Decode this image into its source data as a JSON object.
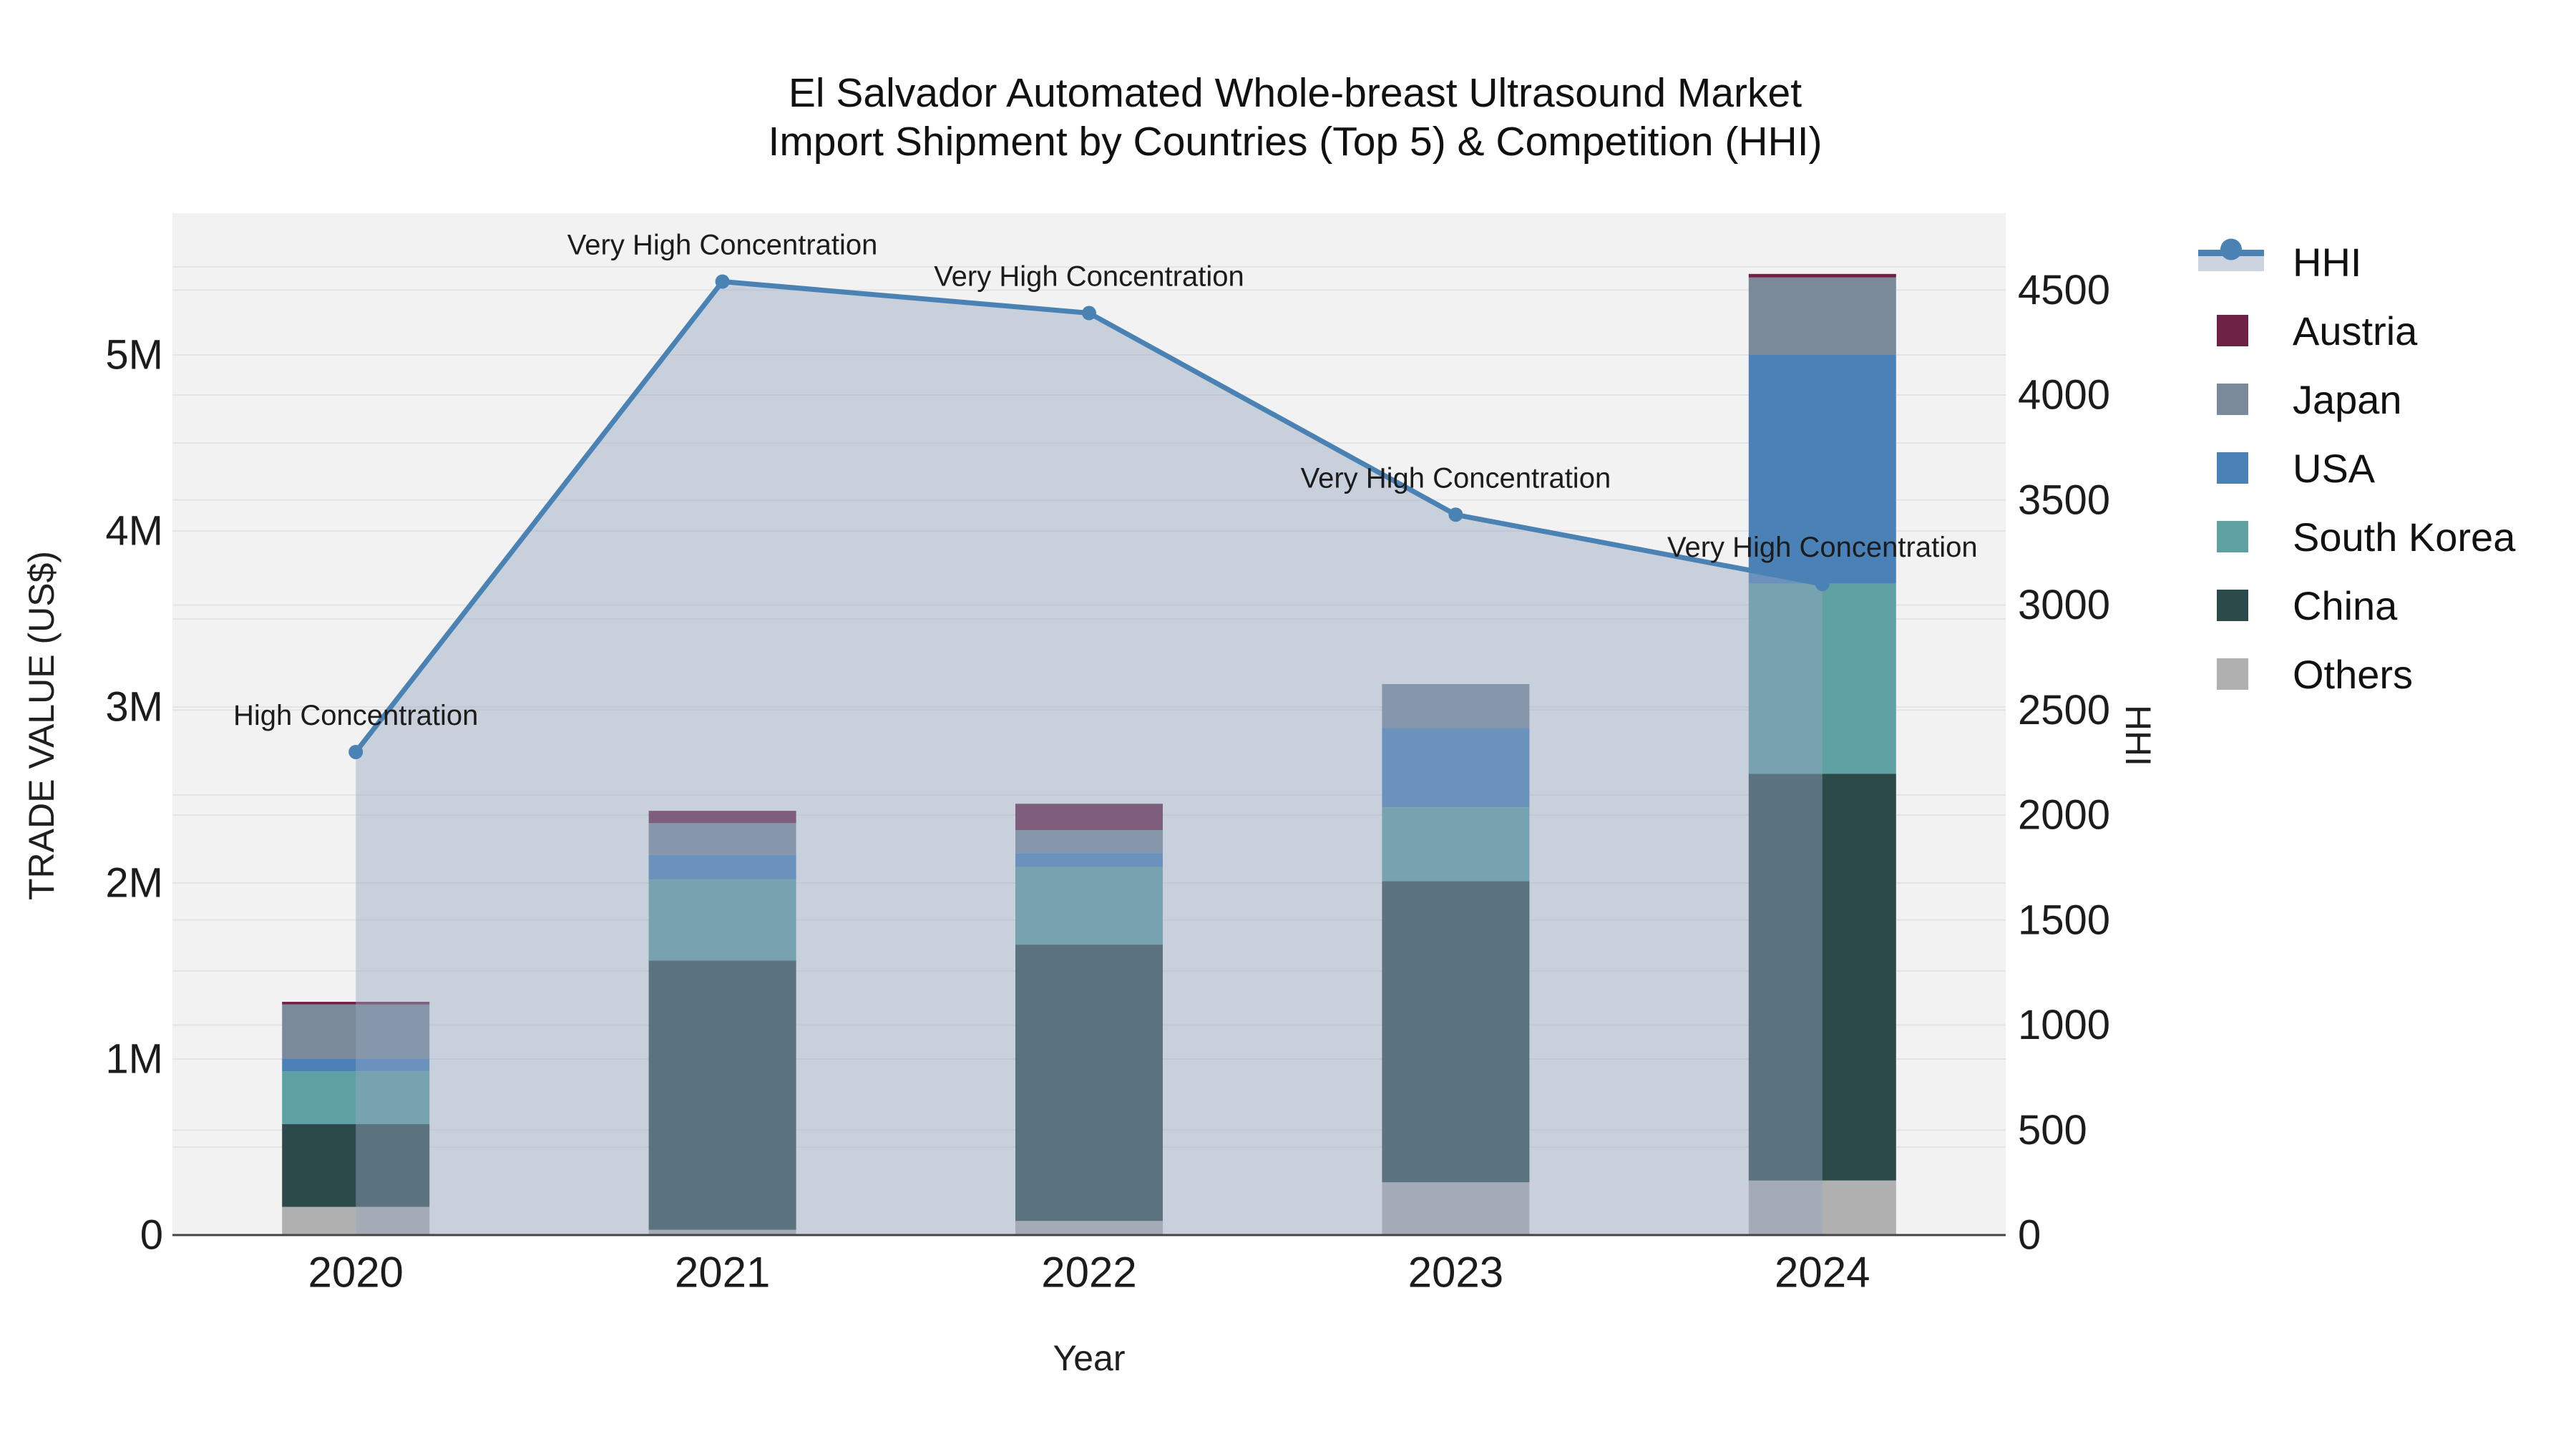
{
  "title": {
    "line1": "El Salvador Automated Whole-breast Ultrasound Market",
    "line2": "Import Shipment by Countries (Top 5) & Competition (HHI)"
  },
  "axes": {
    "x": {
      "title": "Year",
      "ticks": [
        "2020",
        "2021",
        "2022",
        "2023",
        "2024"
      ]
    },
    "y_left": {
      "title": "TRADE VALUE (US$)",
      "ticks": [
        "0",
        "1M",
        "2M",
        "3M",
        "4M",
        "5M"
      ]
    },
    "y_right": {
      "title": "HHI",
      "ticks": [
        "0",
        "500",
        "1000",
        "1500",
        "2000",
        "2500",
        "3000",
        "3500",
        "4000",
        "4500"
      ]
    }
  },
  "legend": {
    "items": [
      {
        "label": "HHI",
        "type": "line",
        "color": "#4a82b4"
      },
      {
        "label": "Austria",
        "type": "box",
        "color": "#6d2145"
      },
      {
        "label": "Japan",
        "type": "box",
        "color": "#7a8a9b"
      },
      {
        "label": "USA",
        "type": "box",
        "color": "#4a82b8"
      },
      {
        "label": "South Korea",
        "type": "box",
        "color": "#5fa0a2"
      },
      {
        "label": "China",
        "type": "box",
        "color": "#2c4a4a"
      },
      {
        "label": "Others",
        "type": "box",
        "color": "#b0b0b0"
      }
    ]
  },
  "chart_data": {
    "type": "combo: stacked bar (trade value) + area line (HHI)",
    "title": "El Salvador Automated Whole-breast Ultrasound Market Import Shipment by Countries (Top 5) & Competition (HHI)",
    "categories": [
      "2020",
      "2021",
      "2022",
      "2023",
      "2024"
    ],
    "xlabel": "Year",
    "ylabel_left": "TRADE VALUE (US$)",
    "ylabel_right": "HHI",
    "y_left_unit": "US$ millions",
    "y_left_range_musd": [
      0,
      5.8
    ],
    "y_right_range": [
      0,
      4830
    ],
    "grid": true,
    "legend_position": "right",
    "bar_stack_order": "bottom to top",
    "series": [
      {
        "name": "Others",
        "color": "#b0b0b0",
        "values": [
          0.16,
          0.03,
          0.08,
          0.3,
          0.31
        ]
      },
      {
        "name": "China",
        "color": "#2c4a4a",
        "values": [
          0.47,
          1.53,
          1.57,
          1.71,
          2.31
        ]
      },
      {
        "name": "South Korea",
        "color": "#5fa0a2",
        "values": [
          0.3,
          0.46,
          0.44,
          0.42,
          1.08
        ]
      },
      {
        "name": "USA",
        "color": "#4a82b8",
        "values": [
          0.07,
          0.14,
          0.08,
          0.45,
          1.3
        ]
      },
      {
        "name": "Japan",
        "color": "#7a8a9b",
        "values": [
          0.31,
          0.18,
          0.13,
          0.25,
          0.44
        ]
      },
      {
        "name": "Austria",
        "color": "#6d2145",
        "values": [
          0.015,
          0.07,
          0.15,
          0.0,
          0.02
        ]
      }
    ],
    "bar_totals_musd": [
      1.33,
      2.41,
      2.45,
      3.13,
      5.46
    ],
    "hhi_line": {
      "name": "HHI",
      "color": "#4a82b4",
      "area_fill": "rgba(148,166,192,0.45)",
      "values": [
        2300,
        4540,
        4390,
        3430,
        3100
      ],
      "annotations": [
        "High Concentration",
        "Very High Concentration",
        "Very High Concentration",
        "Very High Concentration",
        "Very High Concentration"
      ]
    },
    "colors": {
      "plot_bg": "#f2f2f2",
      "grid": "#e4e4e6",
      "axis_line": "#444444",
      "text": "#1f1f1f"
    }
  }
}
